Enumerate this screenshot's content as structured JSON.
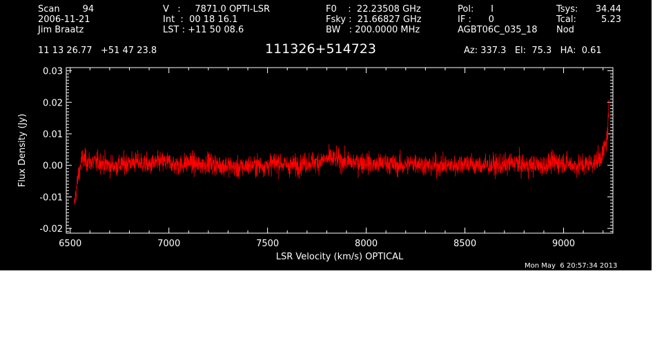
{
  "header": {
    "col1": [
      "Scan        94",
      "2006-11-21",
      "Jim Braatz"
    ],
    "col2": [
      "V   :     7871.0 OPTI-LSR",
      "Int  :  00 18 16.1",
      "LST : +11 50 08.6"
    ],
    "col3": [
      "F0    :  22.23508 GHz",
      "Fsky :  21.66827 GHz",
      "BW   : 200.0000 MHz"
    ],
    "col4": [
      "Pol:      I",
      "IF :      0",
      "AGBT06C_035_18"
    ],
    "col5": [
      "Tsys:",
      "Tcal:",
      "Nod"
    ],
    "col6": [
      "34.44",
      "5.23"
    ],
    "coords": "11 13 26.77   +51 47 23.8",
    "source": "111326+514723",
    "azel": "Az: 337.3   El:  75.3   HA:  0.61"
  },
  "timestamp": "Mon May  6 20:57:34 2013",
  "colors": {
    "background": "#000000",
    "axes": "#ffffff",
    "series": "#ff0000"
  },
  "chart_data": {
    "type": "line",
    "title": "111326+514723",
    "xlabel": "LSR Velocity (km/s) OPTICAL",
    "ylabel": "Flux Density (Jy)",
    "xlim": [
      6480,
      9250
    ],
    "ylim": [
      -0.0215,
      0.031
    ],
    "xticks": [
      6500,
      7000,
      7500,
      8000,
      8500,
      9000
    ],
    "xtick_labels": [
      "6500",
      "7000",
      "7500",
      "8000",
      "8500",
      "9000"
    ],
    "yticks": [
      -0.02,
      -0.01,
      0.0,
      0.01,
      0.02,
      0.03
    ],
    "ytick_labels": [
      "-0.02",
      "-0.01",
      "0.00",
      "0.01",
      "0.02",
      "0.03"
    ],
    "grid": false,
    "series": [
      {
        "x": [
          6520,
          6530,
          6545,
          6560,
          6600,
          6650,
          6700,
          6750,
          6800,
          6850,
          6900,
          6950,
          7000,
          7050,
          7100,
          7150,
          7200,
          7250,
          7300,
          7350,
          7400,
          7450,
          7500,
          7550,
          7600,
          7650,
          7700,
          7750,
          7800,
          7850,
          7900,
          7950,
          8000,
          8050,
          8100,
          8150,
          8200,
          8250,
          8300,
          8350,
          8400,
          8450,
          8500,
          8550,
          8600,
          8650,
          8700,
          8750,
          8800,
          8850,
          8900,
          8950,
          9000,
          9050,
          9100,
          9150,
          9180,
          9200,
          9215,
          9225,
          9230
        ],
        "y": [
          -0.013,
          -0.008,
          -0.002,
          0.002,
          0.001,
          0.001,
          0.0,
          0.0,
          0.001,
          0.001,
          0.0,
          0.001,
          0.001,
          0.0,
          0.001,
          0.0,
          0.001,
          0.0,
          0.0,
          -0.001,
          0.0,
          0.0,
          0.0,
          0.001,
          0.0,
          0.0,
          0.001,
          0.001,
          0.002,
          0.002,
          0.001,
          0.001,
          0.001,
          0.0,
          0.001,
          0.0,
          0.0,
          0.001,
          0.0,
          0.0,
          0.0,
          0.0,
          0.001,
          0.0,
          0.0,
          0.0,
          0.0,
          0.001,
          0.0,
          0.0,
          0.0,
          0.001,
          0.001,
          0.0,
          0.0,
          0.001,
          0.002,
          0.004,
          0.007,
          0.012,
          0.02
        ],
        "noise_rms": 0.003
      }
    ]
  }
}
